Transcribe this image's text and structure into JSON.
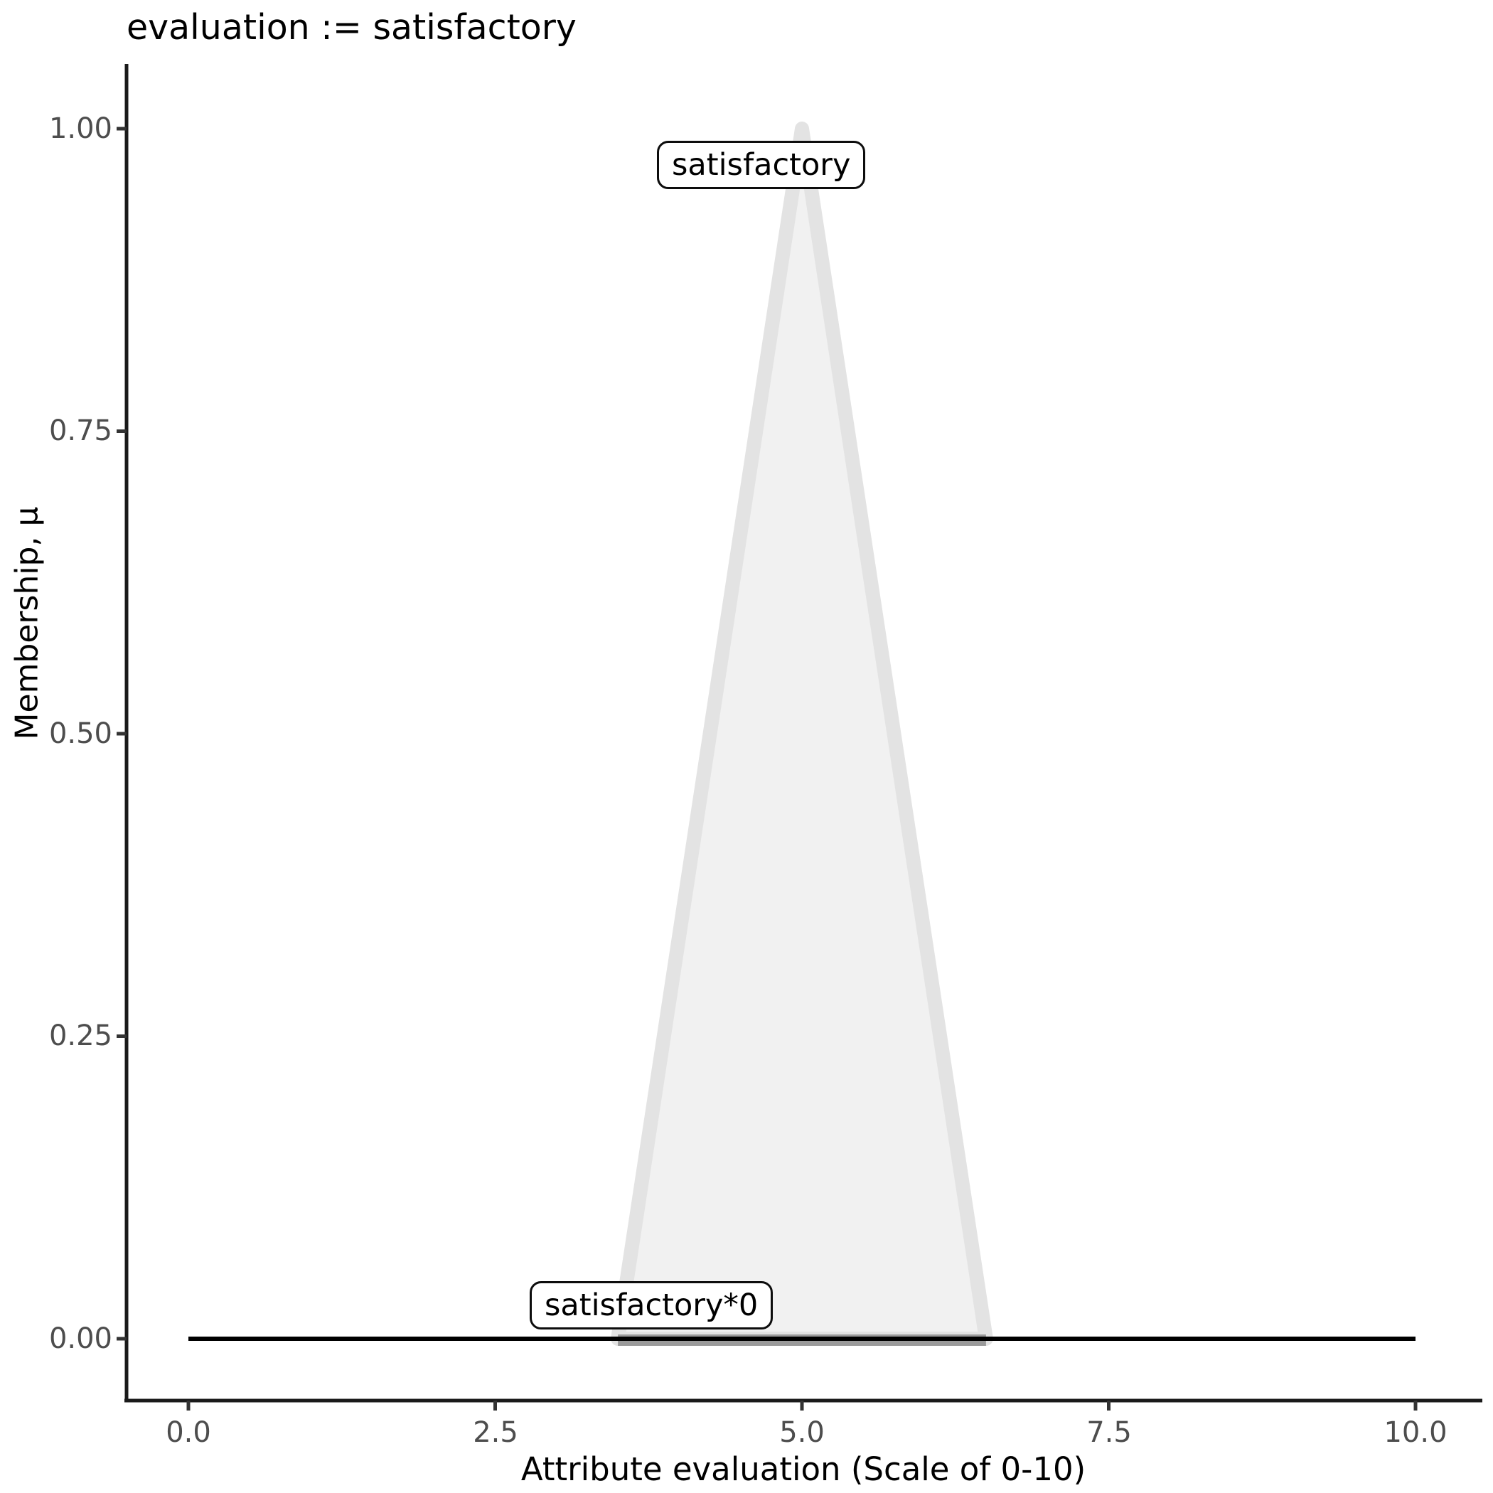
{
  "title": "evaluation := satisfactory",
  "chart_data": {
    "type": "area",
    "title": "evaluation := satisfactory",
    "xlabel": "Attribute evaluation (Scale of 0-10)",
    "ylabel": "Membership, μ",
    "xlim": [
      0,
      10
    ],
    "ylim": [
      0,
      1
    ],
    "grid": false,
    "legend": "none",
    "x_ticks": [
      "0.0",
      "2.5",
      "5.0",
      "7.5",
      "10.0"
    ],
    "x_tick_values": [
      0,
      2.5,
      5,
      7.5,
      10
    ],
    "y_ticks": [
      "0.00",
      "0.25",
      "0.50",
      "0.75",
      "1.00"
    ],
    "y_tick_values": [
      0,
      0.25,
      0.5,
      0.75,
      1
    ],
    "series": [
      {
        "name": "satisfactory",
        "shape": "triangle",
        "x": [
          3.5,
          5,
          6.5
        ],
        "y": [
          0,
          1,
          0
        ],
        "fill": "#f1f1f1",
        "stroke": "#e3e3e3",
        "label": "satisfactory"
      },
      {
        "name": "satisfactory*0",
        "shape": "line",
        "x": [
          0,
          10
        ],
        "y": [
          0,
          0
        ],
        "stroke": "#000000",
        "label": "satisfactory*0"
      }
    ],
    "annotations": [
      {
        "text": "satisfactory",
        "near": {
          "x": 4.7,
          "y": 0.97
        }
      },
      {
        "text": "satisfactory*0",
        "near": {
          "x": 3.8,
          "y": 0.02
        }
      }
    ]
  },
  "colors": {
    "axis_line": "#1a1a1a",
    "tick_mark": "#333333",
    "tick_label": "#4d4d4d",
    "triangle_fill": "#f1f1f1",
    "triangle_stroke": "#e3e3e3",
    "base_overlap": "#9a9a9a",
    "zero_line": "#000000",
    "background": "#ffffff"
  }
}
